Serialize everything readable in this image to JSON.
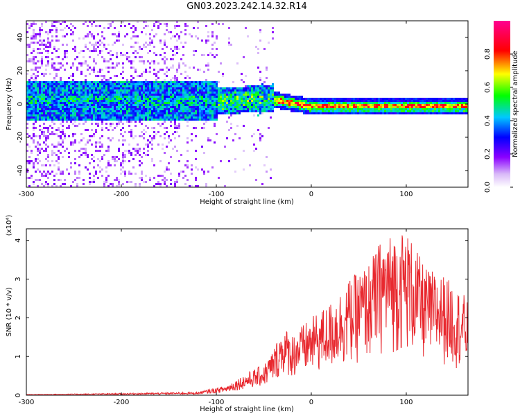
{
  "title": "GN03.2023.242.14.32.R14",
  "chart_data": [
    {
      "type": "heatmap",
      "xlabel": "Height of straight line (km)",
      "ylabel": "Frequency (Hz)",
      "xlim": [
        -300,
        165
      ],
      "ylim": [
        -50,
        50
      ],
      "xticks": [
        -300,
        -200,
        -100,
        0,
        100
      ],
      "yticks": [
        -40,
        -20,
        0,
        20,
        40
      ],
      "colorbar": {
        "label": "Normalized spectral amplitude",
        "range": [
          0,
          1
        ],
        "ticks": [
          0.0,
          0.2,
          0.4,
          0.6,
          0.8
        ],
        "colors": [
          "#ffffff",
          "#8b00ff",
          "#0000ff",
          "#00ffff",
          "#00ff00",
          "#ffff00",
          "#ff0000",
          "#ff0080"
        ]
      },
      "description_values": {
        "band_center_hz": [
          [
            -280,
            3
          ],
          [
            -200,
            3
          ],
          [
            -100,
            2
          ],
          [
            -50,
            4
          ],
          [
            -30,
            2
          ],
          [
            0,
            -1
          ],
          [
            100,
            -1
          ],
          [
            165,
            -1
          ]
        ]
      }
    },
    {
      "type": "line",
      "xlabel": "Height of straight line (km)",
      "ylabel": "SNR (10 * v/v)",
      "scale_label": "(x10⁴)",
      "xlim": [
        -300,
        165
      ],
      "ylim": [
        0,
        4.3
      ],
      "xticks": [
        -300,
        -200,
        -100,
        0,
        100
      ],
      "yticks": [
        0,
        1,
        2,
        3,
        4
      ],
      "series": [
        {
          "color": "#e8282e",
          "envelope": [
            [
              -300,
              0.02
            ],
            [
              -200,
              0.05
            ],
            [
              -120,
              0.08
            ],
            [
              -90,
              0.25
            ],
            [
              -70,
              0.55
            ],
            [
              -50,
              0.8
            ],
            [
              -40,
              1.2
            ],
            [
              -30,
              1.8
            ],
            [
              -20,
              1.6
            ],
            [
              0,
              2.0
            ],
            [
              20,
              2.4
            ],
            [
              40,
              3.0
            ],
            [
              60,
              3.4
            ],
            [
              75,
              4.1
            ],
            [
              100,
              4.3
            ],
            [
              120,
              3.3
            ],
            [
              140,
              3.1
            ],
            [
              165,
              2.5
            ]
          ]
        }
      ]
    }
  ]
}
